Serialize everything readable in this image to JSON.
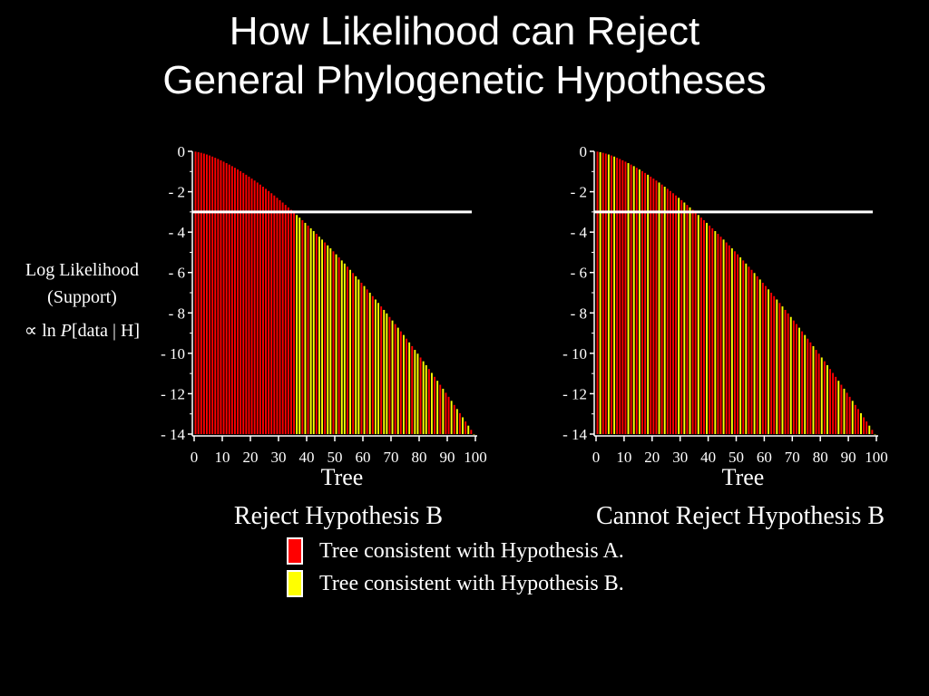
{
  "title": {
    "line1": "How Likelihood can Reject",
    "line2": "General Phylogenetic Hypotheses"
  },
  "y_axis_label": {
    "line1": "Log Likelihood",
    "line2": "(Support)",
    "line3_prefix": "∝ ln ",
    "line3_italic": "P",
    "line3_suffix": "[data | H]"
  },
  "legend": [
    {
      "label": "Tree consistent with Hypothesis A.",
      "color": "#ff0000"
    },
    {
      "label": "Tree consistent with Hypothesis B.",
      "color": "#ffff00"
    }
  ],
  "colors": {
    "hypothesis_a": "#ff0000",
    "hypothesis_b": "#ffff00",
    "background": "#000000",
    "threshold_line": "#ffffff"
  },
  "chart_data": [
    {
      "type": "bar",
      "xlabel": "Tree",
      "caption": "Reject Hypothesis B",
      "ylabel": "Log Likelihood (Support)",
      "xlim": [
        0,
        100
      ],
      "ylim": [
        -14,
        0
      ],
      "x_ticks": [
        0,
        10,
        20,
        30,
        40,
        50,
        60,
        70,
        80,
        90,
        100
      ],
      "y_ticks": [
        0,
        -2,
        -4,
        -6,
        -8,
        -10,
        -12,
        -14
      ],
      "value_formula": "log likelihood of tree i = -14 * (i/100)^1.5, i = 1..100",
      "threshold_y": -3,
      "series": [
        {
          "name": "Tree consistent with Hypothesis A.",
          "x": [
            1,
            2,
            3,
            4,
            5,
            6,
            7,
            8,
            9,
            10,
            11,
            12,
            13,
            14,
            15,
            16,
            17,
            18,
            19,
            20,
            21,
            22,
            23,
            24,
            25,
            26,
            27,
            28,
            29,
            30,
            31,
            32,
            33,
            34,
            35,
            36,
            39,
            41,
            44,
            47,
            50,
            52,
            55,
            57,
            60,
            62,
            64,
            67,
            70,
            72,
            74,
            76,
            78,
            81,
            84,
            86,
            88,
            90,
            91,
            93,
            95,
            97,
            99
          ]
        },
        {
          "name": "Tree consistent with Hypothesis B.",
          "x": [
            37,
            38,
            40,
            42,
            43,
            45,
            46,
            48,
            49,
            51,
            53,
            54,
            56,
            58,
            59,
            61,
            63,
            65,
            66,
            68,
            69,
            71,
            73,
            75,
            77,
            79,
            80,
            82,
            83,
            85,
            87,
            89,
            92,
            94,
            96,
            98,
            100
          ]
        }
      ]
    },
    {
      "type": "bar",
      "xlabel": "Tree",
      "caption": "Cannot Reject Hypothesis B",
      "ylabel": "Log Likelihood (Support)",
      "xlim": [
        0,
        100
      ],
      "ylim": [
        -14,
        0
      ],
      "x_ticks": [
        0,
        10,
        20,
        30,
        40,
        50,
        60,
        70,
        80,
        90,
        100
      ],
      "y_ticks": [
        0,
        -2,
        -4,
        -6,
        -8,
        -10,
        -12,
        -14
      ],
      "value_formula": "log likelihood of tree i = -14 * (i/100)^1.5, i = 1..100",
      "threshold_y": -3,
      "series": [
        {
          "name": "Tree consistent with Hypothesis A.",
          "x": [
            1,
            3,
            4,
            6,
            8,
            9,
            10,
            11,
            13,
            15,
            17,
            18,
            20,
            21,
            22,
            24,
            26,
            27,
            28,
            29,
            31,
            33,
            35,
            36,
            38,
            39,
            41,
            42,
            44,
            45,
            47,
            48,
            50,
            51,
            53,
            55,
            56,
            58,
            60,
            61,
            63,
            64,
            66,
            68,
            69,
            71,
            72,
            74,
            76,
            77,
            79,
            80,
            82,
            84,
            85,
            86,
            88,
            90,
            91,
            93,
            94,
            96,
            97,
            99
          ]
        },
        {
          "name": "Tree consistent with Hypothesis B.",
          "x": [
            2,
            5,
            7,
            12,
            14,
            16,
            19,
            23,
            25,
            30,
            32,
            34,
            37,
            40,
            43,
            46,
            49,
            52,
            54,
            57,
            59,
            62,
            65,
            67,
            70,
            73,
            75,
            78,
            81,
            83,
            87,
            89,
            92,
            95,
            98,
            100
          ]
        }
      ]
    }
  ]
}
